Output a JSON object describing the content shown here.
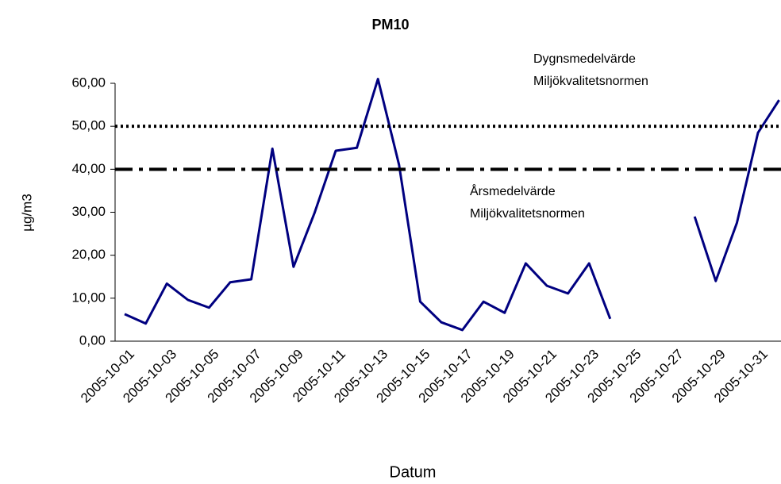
{
  "chart_data": {
    "type": "line",
    "title": "PM10",
    "ylabel": "µg/m3",
    "xlabel": "Datum",
    "categories": [
      "2005-10-01",
      null,
      "2005-10-03",
      null,
      "2005-10-05",
      null,
      "2005-10-07",
      null,
      "2005-10-09",
      null,
      "2005-10-11",
      null,
      "2005-10-13",
      null,
      "2005-10-15",
      null,
      "2005-10-17",
      null,
      "2005-10-19",
      null,
      "2005-10-21",
      null,
      "2005-10-23",
      null,
      "2005-10-25",
      null,
      "2005-10-27",
      null,
      "2005-10-29",
      null,
      "2005-10-31",
      null
    ],
    "series": [
      {
        "name": "PM10",
        "color": "#000080",
        "values": [
          6.3,
          4.1,
          13.4,
          9.6,
          7.8,
          13.7,
          14.4,
          44.8,
          17.3,
          29.9,
          44.3,
          45.0,
          61.0,
          41.0,
          9.2,
          4.4,
          2.6,
          9.2,
          6.6,
          18.1,
          12.9,
          11.1,
          18.1,
          5.2,
          null,
          null,
          null,
          29.0,
          14.0,
          27.5,
          48.5,
          56.1
        ]
      }
    ],
    "ylim": [
      0,
      60
    ],
    "yticks": [
      {
        "value": 0,
        "label": "0,00"
      },
      {
        "value": 10,
        "label": "10,00"
      },
      {
        "value": 20,
        "label": "20,00"
      },
      {
        "value": 30,
        "label": "30,00"
      },
      {
        "value": 40,
        "label": "40,00"
      },
      {
        "value": 50,
        "label": "50,00"
      },
      {
        "value": 60,
        "label": "60,00"
      }
    ],
    "reference_lines": [
      {
        "value": 50,
        "style": "dotted",
        "color": "#000000",
        "label_lines": [
          "Dygnsmedelvärde",
          "Miljökvalitetsnormen"
        ]
      },
      {
        "value": 40,
        "style": "dashdot",
        "color": "#000000",
        "label_lines": [
          "Årsmedelvärde",
          "Miljökvalitetsnormen"
        ]
      }
    ]
  }
}
